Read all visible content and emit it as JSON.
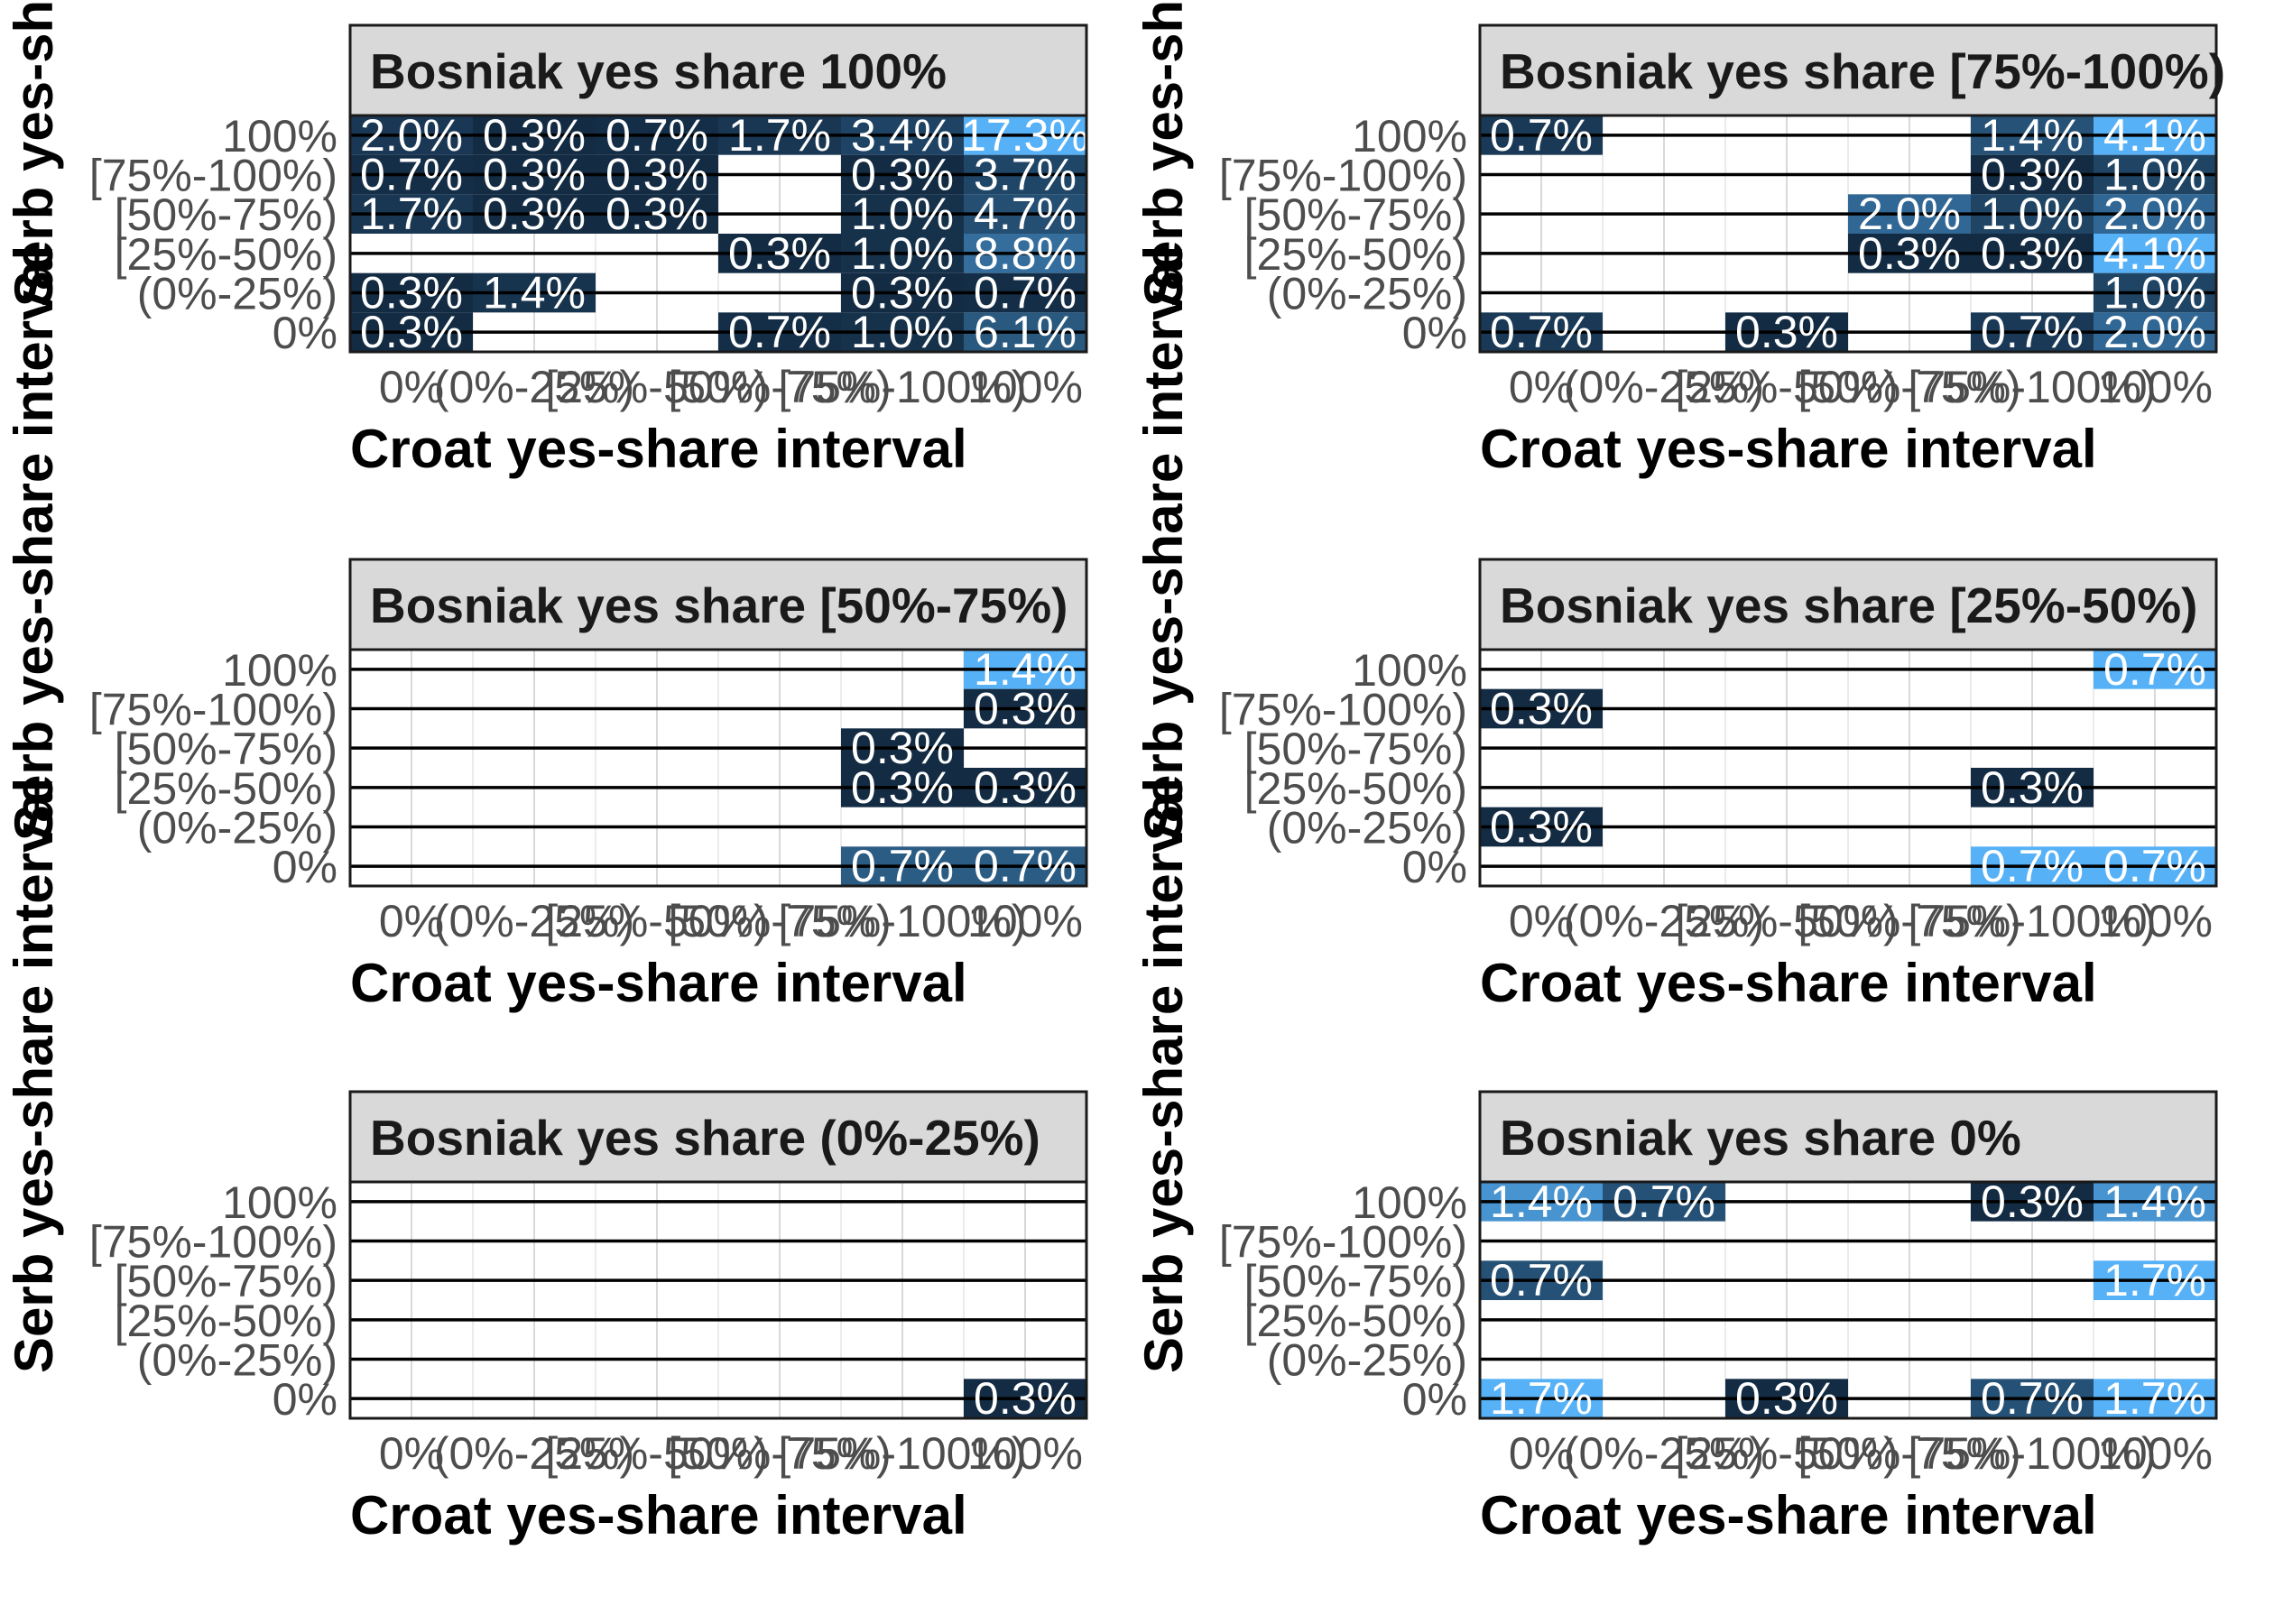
{
  "chart_data": {
    "type": "heatmap",
    "facet_variable": "Bosniak yes-share interval",
    "xlabel": "Croat yes-share interval",
    "ylabel": "Serb yes-share interval",
    "x_categories": [
      "0%",
      "(0%-25%)",
      "[25%-50%)",
      "[50%-75%)",
      "[75%-100%)",
      "100%"
    ],
    "y_categories": [
      "0%",
      "(0%-25%)",
      "[25%-50%)",
      "[50%-75%)",
      "[75%-100%)",
      "100%"
    ],
    "color_scale": {
      "low": "#132b43",
      "high": "#56b1f7"
    },
    "grid": true,
    "panels": [
      {
        "title": "Bosniak yes share 100%",
        "cells": [
          {
            "x": "0%",
            "y": "100%",
            "value": 2.0,
            "label": "2.0%"
          },
          {
            "x": "(0%-25%)",
            "y": "100%",
            "value": 0.3,
            "label": "0.3%"
          },
          {
            "x": "[25%-50%)",
            "y": "100%",
            "value": 0.7,
            "label": "0.7%"
          },
          {
            "x": "[50%-75%)",
            "y": "100%",
            "value": 1.7,
            "label": "1.7%"
          },
          {
            "x": "[75%-100%)",
            "y": "100%",
            "value": 3.4,
            "label": "3.4%"
          },
          {
            "x": "100%",
            "y": "100%",
            "value": 17.3,
            "label": "17.3%"
          },
          {
            "x": "0%",
            "y": "[75%-100%)",
            "value": 0.7,
            "label": "0.7%"
          },
          {
            "x": "(0%-25%)",
            "y": "[75%-100%)",
            "value": 0.3,
            "label": "0.3%"
          },
          {
            "x": "[25%-50%)",
            "y": "[75%-100%)",
            "value": 0.3,
            "label": "0.3%"
          },
          {
            "x": "[75%-100%)",
            "y": "[75%-100%)",
            "value": 0.3,
            "label": "0.3%"
          },
          {
            "x": "100%",
            "y": "[75%-100%)",
            "value": 3.7,
            "label": "3.7%"
          },
          {
            "x": "0%",
            "y": "[50%-75%)",
            "value": 1.7,
            "label": "1.7%"
          },
          {
            "x": "(0%-25%)",
            "y": "[50%-75%)",
            "value": 0.3,
            "label": "0.3%"
          },
          {
            "x": "[25%-50%)",
            "y": "[50%-75%)",
            "value": 0.3,
            "label": "0.3%"
          },
          {
            "x": "[75%-100%)",
            "y": "[50%-75%)",
            "value": 1.0,
            "label": "1.0%"
          },
          {
            "x": "100%",
            "y": "[50%-75%)",
            "value": 4.7,
            "label": "4.7%"
          },
          {
            "x": "[50%-75%)",
            "y": "[25%-50%)",
            "value": 0.3,
            "label": "0.3%"
          },
          {
            "x": "[75%-100%)",
            "y": "[25%-50%)",
            "value": 1.0,
            "label": "1.0%"
          },
          {
            "x": "100%",
            "y": "[25%-50%)",
            "value": 8.8,
            "label": "8.8%"
          },
          {
            "x": "0%",
            "y": "(0%-25%)",
            "value": 0.3,
            "label": "0.3%"
          },
          {
            "x": "(0%-25%)",
            "y": "(0%-25%)",
            "value": 1.4,
            "label": "1.4%"
          },
          {
            "x": "[75%-100%)",
            "y": "(0%-25%)",
            "value": 0.3,
            "label": "0.3%"
          },
          {
            "x": "100%",
            "y": "(0%-25%)",
            "value": 0.7,
            "label": "0.7%"
          },
          {
            "x": "0%",
            "y": "0%",
            "value": 0.3,
            "label": "0.3%"
          },
          {
            "x": "[50%-75%)",
            "y": "0%",
            "value": 0.7,
            "label": "0.7%"
          },
          {
            "x": "[75%-100%)",
            "y": "0%",
            "value": 1.0,
            "label": "1.0%"
          },
          {
            "x": "100%",
            "y": "0%",
            "value": 6.1,
            "label": "6.1%"
          }
        ]
      },
      {
        "title": "Bosniak yes share [75%-100%)",
        "cells": [
          {
            "x": "0%",
            "y": "100%",
            "value": 0.7,
            "label": "0.7%"
          },
          {
            "x": "[75%-100%)",
            "y": "100%",
            "value": 1.4,
            "label": "1.4%"
          },
          {
            "x": "100%",
            "y": "100%",
            "value": 4.1,
            "label": "4.1%"
          },
          {
            "x": "[75%-100%)",
            "y": "[75%-100%)",
            "value": 0.3,
            "label": "0.3%"
          },
          {
            "x": "100%",
            "y": "[75%-100%)",
            "value": 1.0,
            "label": "1.0%"
          },
          {
            "x": "[50%-75%)",
            "y": "[50%-75%)",
            "value": 2.0,
            "label": "2.0%"
          },
          {
            "x": "[75%-100%)",
            "y": "[50%-75%)",
            "value": 1.0,
            "label": "1.0%"
          },
          {
            "x": "100%",
            "y": "[50%-75%)",
            "value": 2.0,
            "label": "2.0%"
          },
          {
            "x": "[50%-75%)",
            "y": "[25%-50%)",
            "value": 0.3,
            "label": "0.3%"
          },
          {
            "x": "[75%-100%)",
            "y": "[25%-50%)",
            "value": 0.3,
            "label": "0.3%"
          },
          {
            "x": "100%",
            "y": "[25%-50%)",
            "value": 4.1,
            "label": "4.1%"
          },
          {
            "x": "100%",
            "y": "(0%-25%)",
            "value": 1.0,
            "label": "1.0%"
          },
          {
            "x": "0%",
            "y": "0%",
            "value": 0.7,
            "label": "0.7%"
          },
          {
            "x": "[25%-50%)",
            "y": "0%",
            "value": 0.3,
            "label": "0.3%"
          },
          {
            "x": "[75%-100%)",
            "y": "0%",
            "value": 0.7,
            "label": "0.7%"
          },
          {
            "x": "100%",
            "y": "0%",
            "value": 2.0,
            "label": "2.0%"
          }
        ]
      },
      {
        "title": "Bosniak yes share [50%-75%)",
        "cells": [
          {
            "x": "100%",
            "y": "100%",
            "value": 1.4,
            "label": "1.4%"
          },
          {
            "x": "100%",
            "y": "[75%-100%)",
            "value": 0.3,
            "label": "0.3%"
          },
          {
            "x": "[75%-100%)",
            "y": "[50%-75%)",
            "value": 0.3,
            "label": "0.3%"
          },
          {
            "x": "[75%-100%)",
            "y": "[25%-50%)",
            "value": 0.3,
            "label": "0.3%"
          },
          {
            "x": "100%",
            "y": "[25%-50%)",
            "value": 0.3,
            "label": "0.3%"
          },
          {
            "x": "[75%-100%)",
            "y": "0%",
            "value": 0.7,
            "label": "0.7%"
          },
          {
            "x": "100%",
            "y": "0%",
            "value": 0.7,
            "label": "0.7%"
          }
        ]
      },
      {
        "title": "Bosniak yes share [25%-50%)",
        "cells": [
          {
            "x": "100%",
            "y": "100%",
            "value": 0.7,
            "label": "0.7%"
          },
          {
            "x": "0%",
            "y": "[75%-100%)",
            "value": 0.3,
            "label": "0.3%"
          },
          {
            "x": "[75%-100%)",
            "y": "[25%-50%)",
            "value": 0.3,
            "label": "0.3%"
          },
          {
            "x": "0%",
            "y": "(0%-25%)",
            "value": 0.3,
            "label": "0.3%"
          },
          {
            "x": "[75%-100%)",
            "y": "0%",
            "value": 0.7,
            "label": "0.7%"
          },
          {
            "x": "100%",
            "y": "0%",
            "value": 0.7,
            "label": "0.7%"
          }
        ]
      },
      {
        "title": "Bosniak yes share (0%-25%)",
        "cells": [
          {
            "x": "100%",
            "y": "0%",
            "value": 0.3,
            "label": "0.3%"
          }
        ]
      },
      {
        "title": "Bosniak yes share 0%",
        "cells": [
          {
            "x": "0%",
            "y": "100%",
            "value": 1.4,
            "label": "1.4%"
          },
          {
            "x": "(0%-25%)",
            "y": "100%",
            "value": 0.7,
            "label": "0.7%"
          },
          {
            "x": "[75%-100%)",
            "y": "100%",
            "value": 0.3,
            "label": "0.3%"
          },
          {
            "x": "100%",
            "y": "100%",
            "value": 1.4,
            "label": "1.4%"
          },
          {
            "x": "0%",
            "y": "[50%-75%)",
            "value": 0.7,
            "label": "0.7%"
          },
          {
            "x": "100%",
            "y": "[50%-75%)",
            "value": 1.7,
            "label": "1.7%"
          },
          {
            "x": "0%",
            "y": "0%",
            "value": 1.7,
            "label": "1.7%"
          },
          {
            "x": "[25%-50%)",
            "y": "0%",
            "value": 0.3,
            "label": "0.3%"
          },
          {
            "x": "[75%-100%)",
            "y": "0%",
            "value": 0.7,
            "label": "0.7%"
          },
          {
            "x": "100%",
            "y": "0%",
            "value": 1.7,
            "label": "1.7%"
          }
        ]
      }
    ]
  }
}
